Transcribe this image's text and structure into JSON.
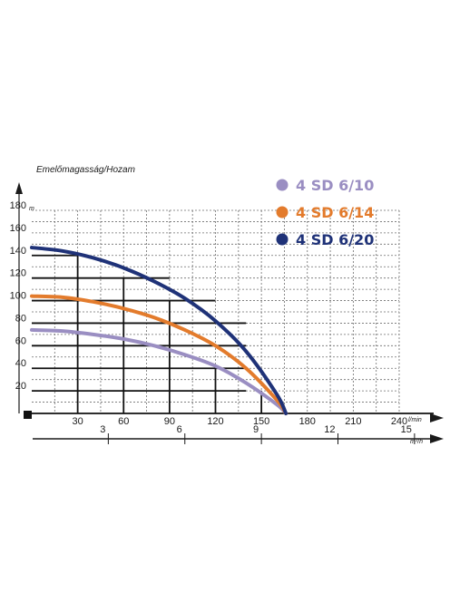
{
  "chart_data": {
    "type": "line",
    "title": "",
    "ylabel": "Emelőmagasság/Hozam",
    "ylabel_unit": "m",
    "xlabel_unit_primary": "l/min",
    "xlabel_unit_secondary": "m³/h",
    "ylim": [
      0,
      180
    ],
    "xlim": [
      0,
      240
    ],
    "y_ticks": [
      20,
      40,
      60,
      80,
      100,
      120,
      140,
      160,
      180
    ],
    "x_ticks": [
      30,
      60,
      90,
      120,
      150,
      180,
      210,
      240
    ],
    "x2_ticks": [
      3,
      6,
      9,
      12,
      15
    ],
    "grid": true,
    "legend_position": "top-right",
    "series": [
      {
        "name": "4 SD 6/10",
        "color": "#9a8ec2",
        "x": [
          0,
          20,
          40,
          60,
          80,
          100,
          120,
          140,
          160,
          166
        ],
        "y": [
          74,
          73,
          70,
          66,
          60,
          52,
          42,
          27,
          8,
          0
        ]
      },
      {
        "name": "4 SD 6/14",
        "color": "#e37b2c",
        "x": [
          0,
          20,
          40,
          60,
          80,
          100,
          120,
          140,
          160,
          166
        ],
        "y": [
          104,
          103,
          99,
          93,
          85,
          74,
          60,
          40,
          12,
          0
        ]
      },
      {
        "name": "4 SD 6/20",
        "color": "#1f3278",
        "x": [
          0,
          20,
          40,
          60,
          80,
          100,
          120,
          140,
          160,
          166
        ],
        "y": [
          147,
          144,
          138,
          129,
          117,
          102,
          82,
          55,
          17,
          0
        ]
      }
    ]
  }
}
